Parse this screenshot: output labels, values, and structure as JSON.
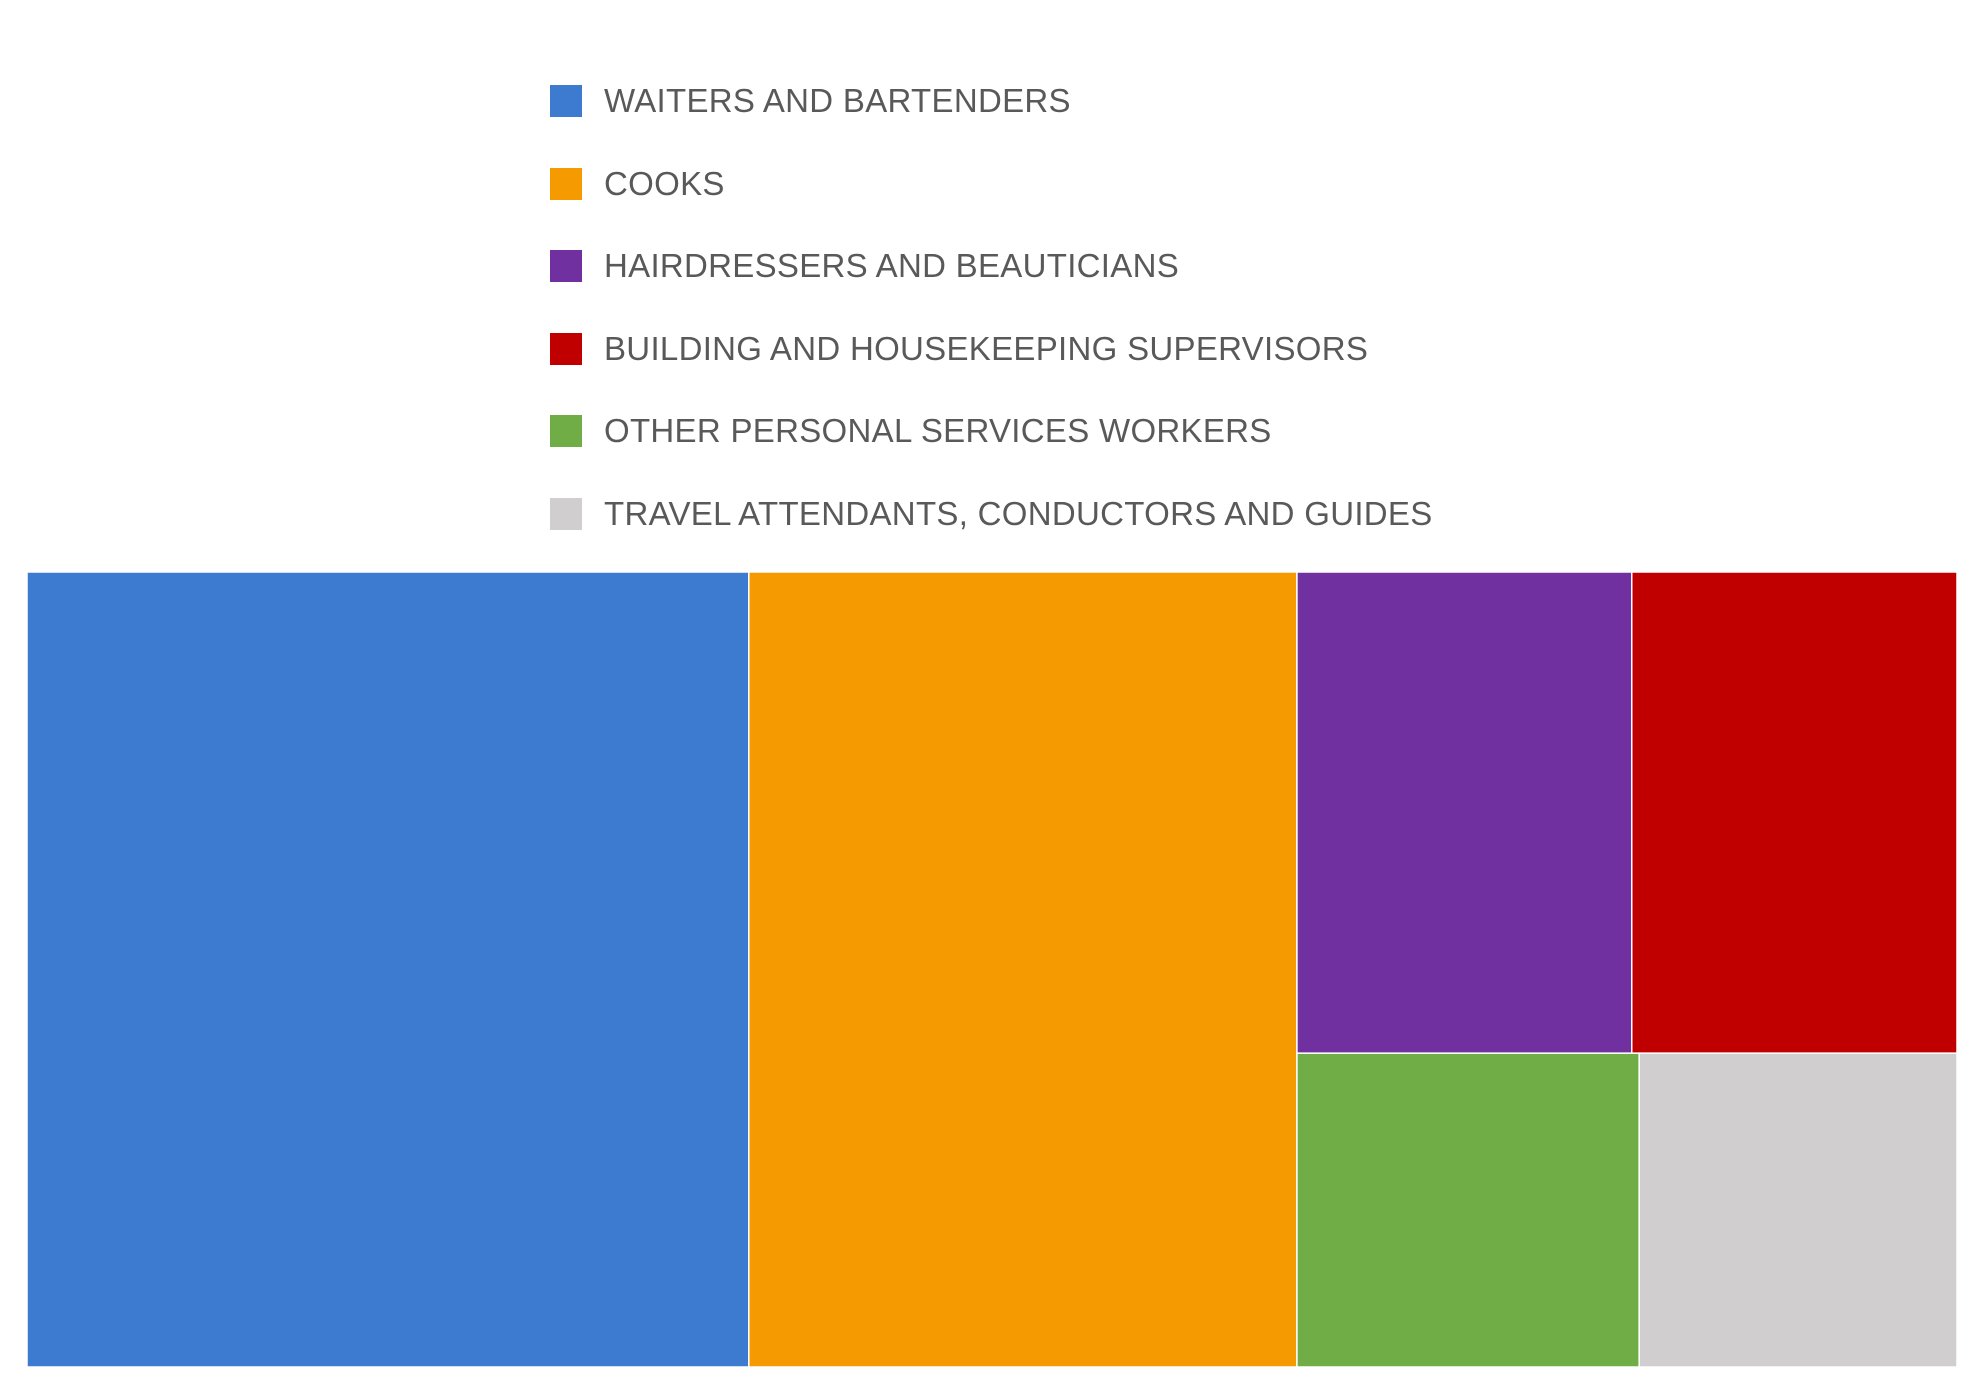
{
  "chart_data": {
    "type": "treemap",
    "legend_position": "top-center",
    "tiles": [
      {
        "label": "WAITERS AND BARTENDERS",
        "value": 37.4,
        "color": "#3D7BD1"
      },
      {
        "label": "COOKS",
        "value": 28.4,
        "color": "#F59A00"
      },
      {
        "label": "HAIRDRESSERS AND BEAUTICIANS",
        "value": 10.5,
        "color": "#7030A0"
      },
      {
        "label": "BUILDING AND HOUSEKEEPING SUPERVISORS",
        "value": 10.2,
        "color": "#C00000"
      },
      {
        "label": "OTHER PERSONAL SERVICES WORKERS",
        "value": 7.0,
        "color": "#70AD47"
      },
      {
        "label": "TRAVEL ATTENDANTS, CONDUCTORS AND GUIDES",
        "value": 6.5,
        "color": "#D0CECE"
      }
    ]
  }
}
